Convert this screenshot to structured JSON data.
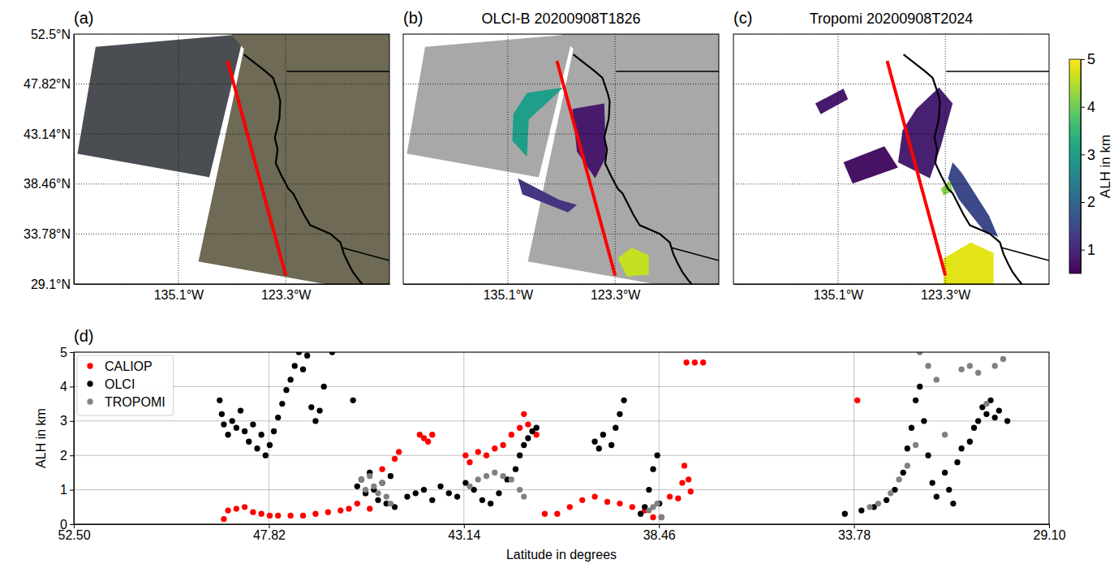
{
  "chart_data": [
    {
      "type": "map",
      "panel": "(a)",
      "xlim": [
        -146.6,
        -111.9
      ],
      "ylim": [
        29.1,
        52.5
      ],
      "xticks": [
        {
          "value": -135.1,
          "label": "135.1°W"
        },
        {
          "value": -123.3,
          "label": "123.3°W"
        }
      ],
      "yticks": [
        {
          "value": 52.5,
          "label": "52.5°N"
        },
        {
          "value": 47.82,
          "label": "47.82°N"
        },
        {
          "value": 43.14,
          "label": "43.14°N"
        },
        {
          "value": 38.46,
          "label": "38.46°N"
        },
        {
          "value": 33.78,
          "label": "33.78°N"
        },
        {
          "value": 29.1,
          "label": "29.1°N"
        }
      ],
      "grid": true,
      "swaths": [
        {
          "lon": [
            -146.2,
            -144.2,
            -127.9,
            -131.7
          ],
          "lat": [
            41.3,
            51.3,
            52.5,
            39.1
          ],
          "color": "#4a4e52"
        },
        {
          "lon": [
            -129.3,
            -111.9,
            -111.9,
            -119.0,
            -132.9,
            -127.9
          ],
          "lat": [
            52.5,
            52.5,
            29.1,
            29.1,
            31.2,
            51.1
          ],
          "color": "#6e6a55"
        }
      ],
      "coastline": {
        "lon": [
          -127.9,
          -125.5,
          -124.7,
          -124.1,
          -123.9,
          -124.0,
          -124.5,
          -124.2,
          -124.4,
          -123.8,
          -123.0,
          -122.5,
          -121.9,
          -121.3,
          -120.6,
          -119.2,
          -118.4,
          -117.3,
          -116.9,
          -116.4,
          -115.9,
          -115.2,
          -114.9
        ],
        "lat": [
          50.6,
          49.0,
          48.4,
          46.9,
          46.2,
          44.6,
          42.8,
          41.7,
          40.4,
          39.3,
          38.0,
          37.6,
          36.6,
          35.6,
          34.6,
          34.1,
          33.8,
          33.0,
          31.9,
          31.0,
          30.2,
          29.4,
          29.1
        ]
      },
      "borders": [
        {
          "lon": [
            -123.2,
            -111.9
          ],
          "lat": [
            49.0,
            49.0
          ]
        },
        {
          "lon": [
            -117.1,
            -111.9
          ],
          "lat": [
            32.5,
            31.3
          ]
        }
      ],
      "track": {
        "lon": [
          -129.7,
          -123.3
        ],
        "lat": [
          50.0,
          29.9
        ],
        "color": "#ff0000"
      }
    },
    {
      "type": "map",
      "panel": "(b)",
      "title": "OLCI-B 20200908T1826",
      "xlim": [
        -146.6,
        -111.9
      ],
      "ylim": [
        29.1,
        52.5
      ],
      "xticks": [
        {
          "value": -135.1,
          "label": "135.1°W"
        },
        {
          "value": -123.3,
          "label": "123.3°W"
        }
      ],
      "yticks": [
        52.5,
        47.82,
        43.14,
        38.46,
        33.78,
        29.1
      ],
      "grid": true,
      "tick_labels": "x",
      "swaths": [
        {
          "lon": [
            -146.2,
            -144.2,
            -127.9,
            -131.7
          ],
          "lat": [
            41.3,
            51.3,
            52.5,
            39.1
          ],
          "color": "#a8a8a8"
        },
        {
          "lon": [
            -129.3,
            -111.9,
            -111.9,
            -119.0,
            -132.9,
            -127.9
          ],
          "lat": [
            52.5,
            52.5,
            29.1,
            29.1,
            31.2,
            51.1
          ],
          "color": "#a8a8a8"
        }
      ],
      "patches": [
        {
          "lon": [
            -134.5,
            -133.0,
            -129.0,
            -130.5,
            -132.8,
            -133.0,
            -134.6
          ],
          "lat": [
            45.0,
            47.0,
            47.5,
            46.3,
            44.5,
            41.0,
            42.5
          ],
          "alh": 3
        },
        {
          "lon": [
            -128.0,
            -124.5,
            -124.3,
            -125.5,
            -127.5
          ],
          "lat": [
            45.5,
            46.0,
            41.0,
            39.0,
            41.5
          ],
          "alh": 0.8
        },
        {
          "lon": [
            -134.0,
            -129.5,
            -127.5,
            -128.5,
            -133.5
          ],
          "lat": [
            39.0,
            37.0,
            36.5,
            35.8,
            37.5
          ],
          "alh": 1.2
        },
        {
          "lon": [
            -123.0,
            -121.5,
            -119.6,
            -119.6,
            -122.0
          ],
          "lat": [
            31.5,
            32.5,
            31.8,
            30.0,
            29.8
          ],
          "alh": 4.6
        }
      ]
    },
    {
      "type": "map",
      "panel": "(c)",
      "title": "Tropomi 20200908T2024",
      "xlim": [
        -146.6,
        -111.9
      ],
      "ylim": [
        29.1,
        52.5
      ],
      "xticks": [
        {
          "value": -135.1,
          "label": "135.1°W"
        },
        {
          "value": -123.3,
          "label": "123.3°W"
        }
      ],
      "yticks": [
        52.5,
        47.82,
        43.14,
        38.46,
        33.78,
        29.1
      ],
      "grid": true,
      "tick_labels": "x",
      "patches": [
        {
          "lon": [
            -137.6,
            -134.5,
            -134.0,
            -137.0
          ],
          "lat": [
            46.0,
            47.4,
            46.4,
            45.0
          ],
          "alh": 0.8
        },
        {
          "lon": [
            -126.5,
            -124.0,
            -122.5,
            -123.8,
            -125.0,
            -128.5,
            -128.0
          ],
          "lat": [
            45.5,
            47.5,
            46.0,
            42.0,
            39.0,
            40.5,
            43.5
          ],
          "alh": 0.9
        },
        {
          "lon": [
            -134.5,
            -130.0,
            -128.5,
            -133.5
          ],
          "lat": [
            40.5,
            42.0,
            40.0,
            38.5
          ],
          "alh": 0.7
        },
        {
          "lon": [
            -122.5,
            -121.5,
            -118.5,
            -117.5,
            -119.0,
            -121.8,
            -123.0
          ],
          "lat": [
            40.5,
            39.5,
            35.5,
            33.5,
            34.0,
            37.0,
            39.0
          ],
          "alh": 1.5
        },
        {
          "lon": [
            -123.8,
            -122.8,
            -122.5,
            -123.5
          ],
          "lat": [
            38.0,
            38.8,
            37.8,
            37.4
          ],
          "alh": 4.2
        },
        {
          "lon": [
            -123.5,
            -120.5,
            -118.0,
            -118.0,
            -123.5
          ],
          "lat": [
            31.5,
            33.0,
            32.0,
            29.1,
            29.1
          ],
          "alh": 4.8
        }
      ],
      "colorbar": {
        "label": "ALH in km",
        "range": [
          0.5,
          5
        ],
        "ticks": [
          1,
          2,
          3,
          4,
          5
        ]
      }
    },
    {
      "type": "scatter",
      "panel": "(d)",
      "xlabel": "Latitude in degrees",
      "ylabel": "ALH in km",
      "xlim": [
        52.5,
        29.1
      ],
      "ylim": [
        0,
        5
      ],
      "xticks": [
        {
          "value": 52.5,
          "label": "52.50"
        },
        47.82,
        43.14,
        38.46,
        33.78,
        {
          "value": 29.1,
          "label": "29.10"
        }
      ],
      "yticks": [
        0,
        1,
        2,
        3,
        4,
        5
      ],
      "grid": true,
      "legend": "upper left",
      "series": [
        {
          "name": "CALIOP",
          "color": "#ff0000",
          "marker": "circle",
          "x": [
            48.9,
            48.8,
            48.6,
            48.4,
            48.2,
            48.0,
            47.8,
            47.6,
            47.3,
            47.0,
            46.7,
            46.4,
            46.1,
            45.9,
            45.7,
            45.5,
            45.4,
            45.1,
            44.8,
            44.7,
            44.2,
            44.1,
            44.0,
            43.9,
            43.1,
            43.0,
            42.8,
            42.6,
            42.4,
            42.2,
            42.0,
            41.8,
            41.7,
            41.6,
            41.4,
            41.2,
            40.9,
            40.6,
            40.3,
            40.0,
            39.7,
            39.4,
            39.1,
            38.8,
            38.6,
            38.4,
            38.2,
            38.0,
            37.9,
            37.85,
            37.75,
            37.7,
            37.8,
            37.6,
            37.4,
            33.7
          ],
          "values": [
            0.15,
            0.4,
            0.45,
            0.5,
            0.35,
            0.3,
            0.25,
            0.25,
            0.25,
            0.25,
            0.3,
            0.35,
            0.4,
            0.45,
            0.6,
            0.9,
            0.45,
            1.6,
            1.9,
            2.1,
            2.6,
            2.5,
            2.4,
            2.6,
            2.0,
            1.8,
            2.1,
            2.0,
            2.2,
            2.3,
            2.6,
            2.8,
            3.2,
            2.9,
            2.6,
            0.3,
            0.3,
            0.5,
            0.7,
            0.8,
            0.65,
            0.6,
            0.5,
            0.4,
            0.2,
            0.2,
            0.8,
            0.75,
            1.2,
            1.7,
            1.3,
            0.95,
            4.7,
            4.7,
            4.7,
            3.6
          ]
        },
        {
          "name": "OLCI",
          "color": "#000000",
          "marker": "circle",
          "x": [
            49.0,
            48.95,
            48.9,
            48.8,
            48.7,
            48.6,
            48.5,
            48.4,
            48.3,
            48.2,
            48.1,
            48.0,
            47.9,
            47.8,
            47.7,
            47.6,
            47.5,
            47.4,
            47.3,
            47.2,
            47.1,
            47.0,
            46.9,
            46.8,
            46.7,
            46.6,
            46.5,
            46.3,
            45.8,
            45.7,
            45.6,
            45.5,
            45.4,
            45.3,
            45.2,
            45.1,
            45.0,
            44.9,
            44.8,
            44.5,
            44.3,
            44.1,
            43.9,
            43.7,
            43.5,
            43.3,
            43.1,
            42.9,
            42.7,
            42.5,
            42.3,
            42.1,
            41.9,
            41.8,
            41.7,
            41.6,
            41.5,
            41.4,
            40.0,
            39.9,
            39.8,
            39.6,
            39.5,
            39.4,
            39.3,
            38.9,
            38.8,
            38.7,
            38.6,
            38.5,
            38.45,
            34.0,
            33.6,
            33.3,
            33.0,
            32.8,
            32.6,
            32.5,
            32.4,
            32.3,
            32.2,
            32.1,
            32.0,
            31.9,
            31.8,
            31.6,
            31.5,
            31.4,
            31.3,
            31.2,
            31.0,
            30.9,
            30.8,
            30.7,
            30.6,
            30.5,
            30.4,
            30.3,
            30.1
          ],
          "values": [
            3.6,
            3.2,
            2.9,
            2.6,
            3.0,
            2.8,
            3.3,
            2.7,
            2.4,
            2.9,
            2.2,
            2.6,
            2.0,
            2.3,
            2.7,
            3.1,
            3.5,
            3.9,
            4.2,
            4.6,
            5.0,
            4.5,
            4.9,
            3.4,
            3.0,
            3.3,
            4.0,
            5.0,
            3.6,
            1.1,
            1.3,
            0.9,
            1.5,
            1.0,
            0.7,
            1.2,
            0.6,
            1.4,
            0.5,
            0.8,
            0.9,
            1.0,
            0.7,
            1.1,
            0.9,
            0.8,
            1.2,
            1.0,
            0.7,
            0.6,
            0.9,
            1.3,
            1.6,
            2.0,
            2.3,
            2.5,
            2.7,
            2.8,
            2.4,
            2.2,
            2.6,
            2.3,
            2.8,
            3.2,
            3.6,
            0.3,
            0.5,
            1.0,
            1.6,
            2.0,
            0.6,
            0.3,
            0.4,
            0.5,
            0.7,
            1.0,
            1.5,
            2.2,
            2.8,
            3.6,
            4.0,
            3.0,
            2.0,
            1.2,
            0.8,
            1.5,
            1.0,
            0.6,
            1.8,
            2.2,
            2.4,
            2.8,
            3.0,
            3.4,
            3.2,
            3.6,
            3.1,
            3.3,
            3.0
          ]
        },
        {
          "name": "TROPOMI",
          "color": "#808080",
          "marker": "circle",
          "x": [
            45.6,
            45.5,
            45.4,
            45.3,
            45.2,
            45.1,
            45.0,
            44.9,
            43.0,
            42.8,
            42.6,
            42.4,
            42.2,
            42.0,
            41.8,
            41.7,
            38.7,
            38.6,
            38.5,
            38.4,
            33.4,
            33.2,
            32.9,
            32.7,
            32.5,
            32.3,
            32.2,
            32.0,
            31.8,
            31.6,
            31.2,
            31.0,
            30.8,
            30.6,
            30.4,
            30.2
          ],
          "values": [
            1.3,
            1.0,
            1.4,
            1.1,
            0.9,
            1.2,
            0.8,
            0.6,
            1.1,
            1.3,
            1.4,
            1.5,
            1.4,
            1.3,
            1.0,
            0.8,
            0.4,
            0.5,
            0.6,
            0.2,
            0.5,
            0.6,
            0.9,
            1.3,
            1.7,
            2.3,
            5.0,
            4.6,
            4.2,
            2.6,
            4.5,
            4.6,
            4.4,
            3.5,
            4.6,
            4.8
          ]
        }
      ]
    }
  ]
}
